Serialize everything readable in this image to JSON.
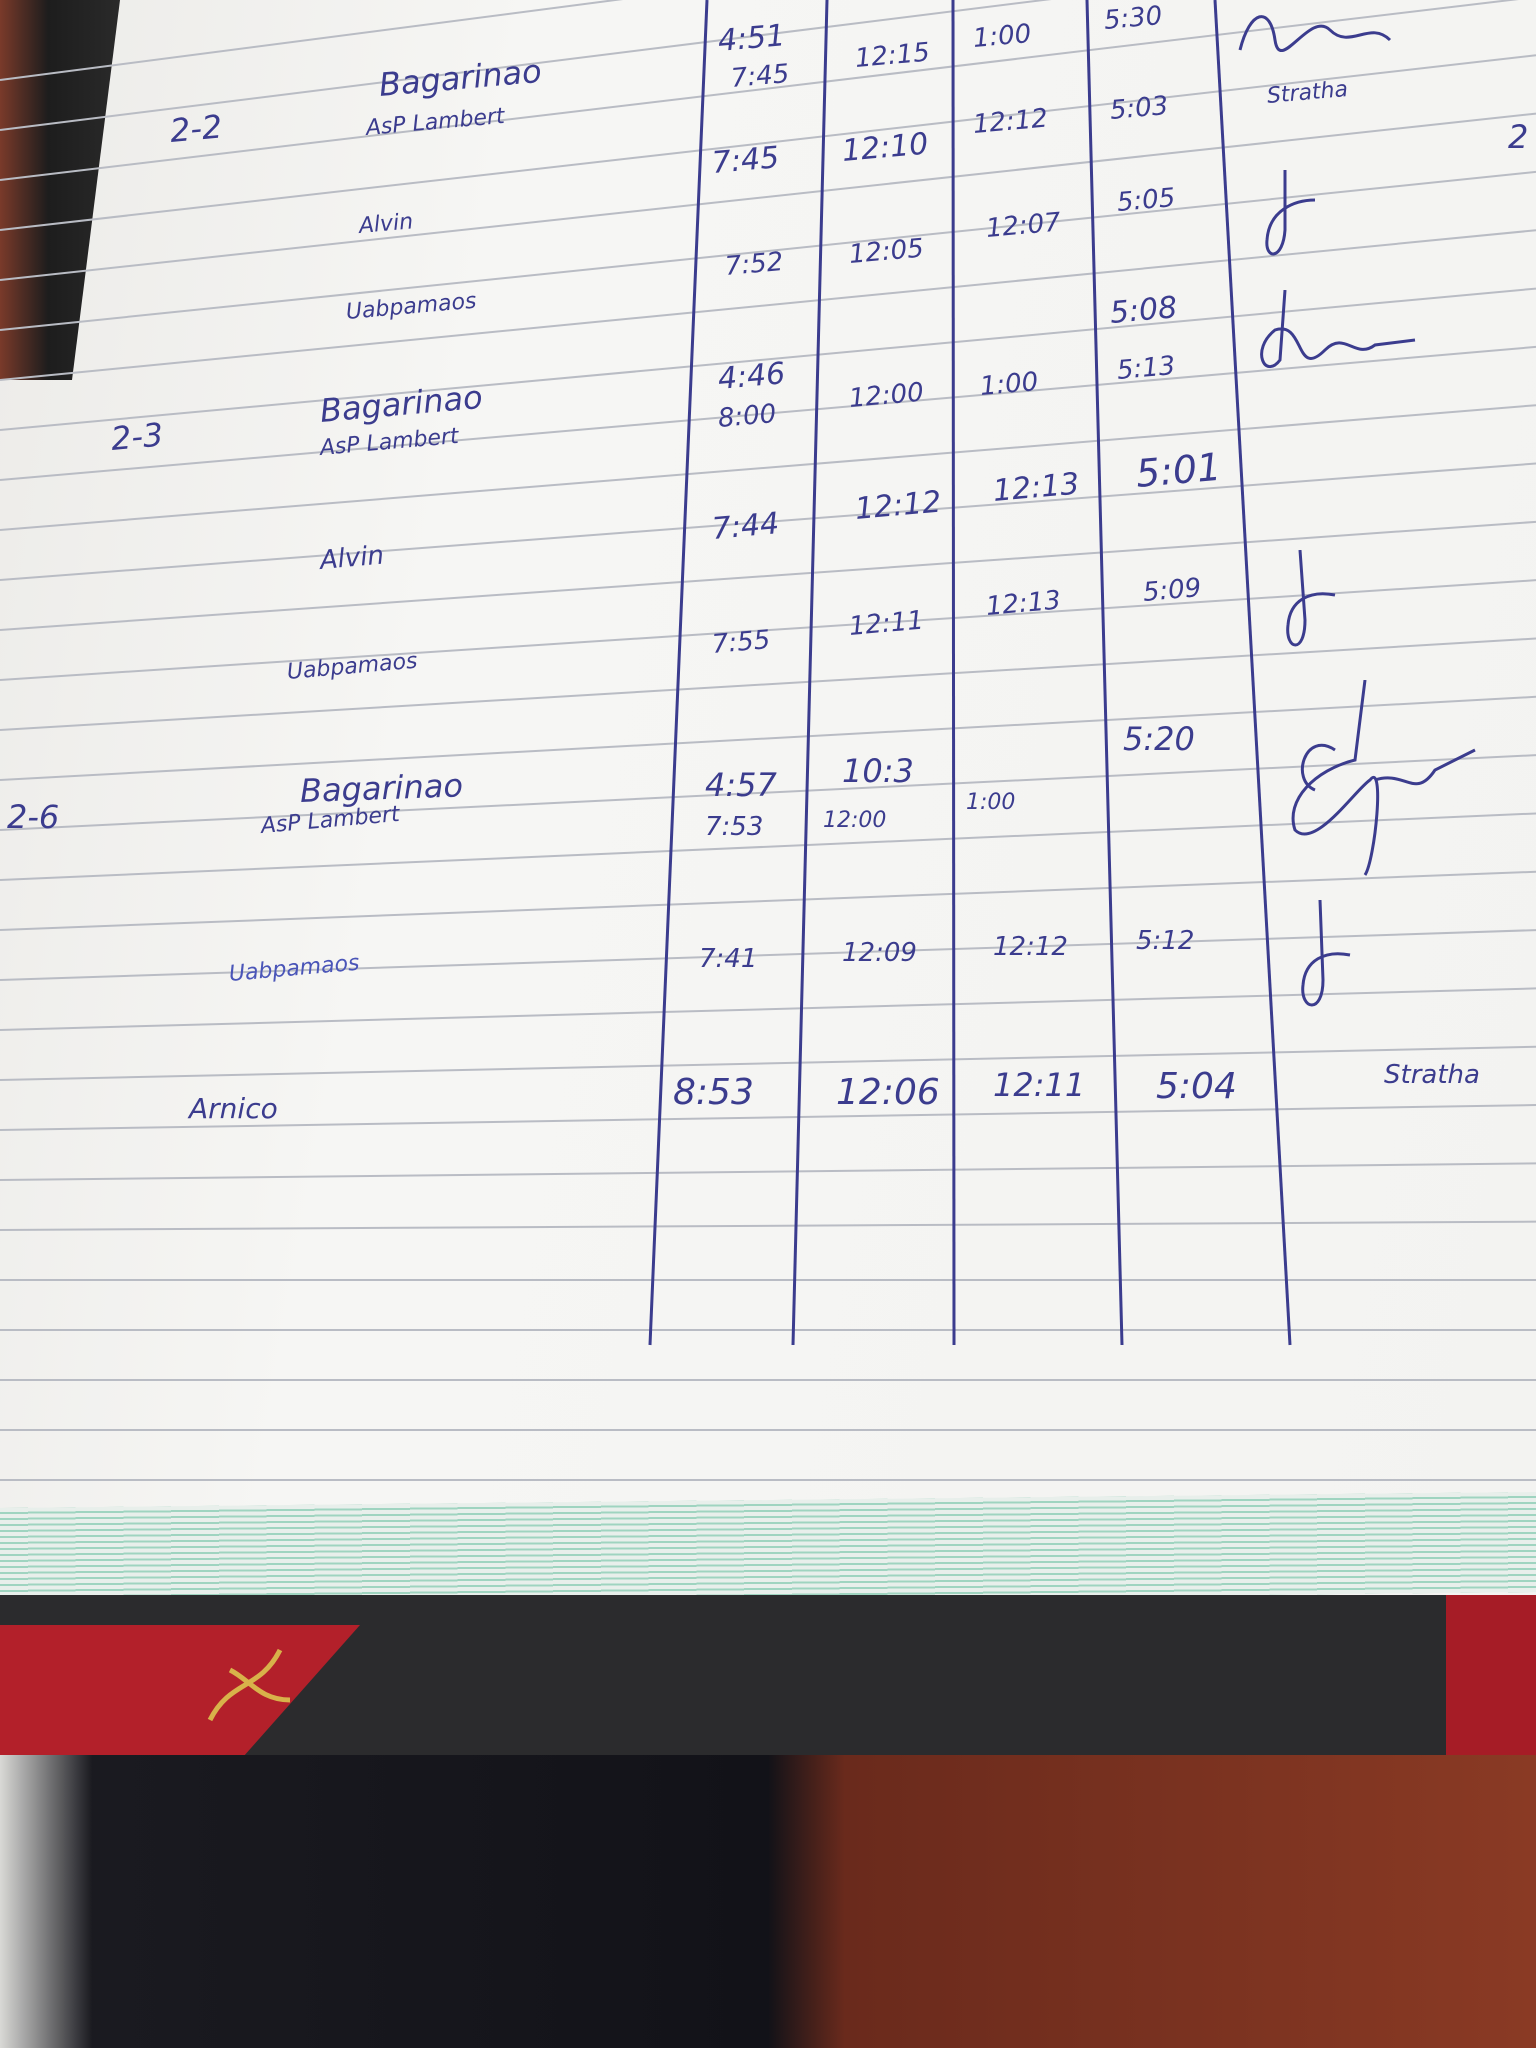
{
  "ledger": {
    "page_marker": "2",
    "groups": [
      {
        "date": "2-2",
        "entries": [
          {
            "name": "Bagarinao",
            "sub": "AsP Lambert",
            "in_am": "7:45",
            "in_am_alt": "4:51",
            "out_am": "12:15",
            "in_pm": "1:00",
            "out_pm": "5:30",
            "signature": "signature-scribble"
          },
          {
            "name": "",
            "in_am": "7:45",
            "out_am": "12:10",
            "in_pm": "12:12",
            "out_pm": "5:03",
            "signature_text": "Stratha"
          },
          {
            "name": "Alvin",
            "in_am": "7:52",
            "out_am": "12:05",
            "in_pm": "12:07",
            "out_pm": "5:05",
            "signature": "signature-initial"
          },
          {
            "name": "Uabpamaos",
            "out_pm": "5:08",
            "out_pm_alt": "5:13",
            "signature": "signature-scribble"
          }
        ]
      },
      {
        "date": "2-3",
        "entries": [
          {
            "name": "Bagarinao",
            "sub": "AsP Lambert",
            "in_am_alt": "4:46",
            "in_am": "8:00",
            "out_am": "12:00",
            "in_pm": "1:00",
            "out_pm": "5:01"
          },
          {
            "name": "Alvin",
            "in_am": "7:44",
            "out_am": "12:12",
            "in_pm": "12:13",
            "out_pm": "5:09",
            "signature": "signature-initial"
          },
          {
            "name": "Uabpamaos",
            "in_am": "7:55",
            "out_am": "12:11",
            "in_pm": "12:13"
          }
        ]
      },
      {
        "date": "2-6",
        "entries": [
          {
            "name": "Bagarinao",
            "sub": "AsP Lambert",
            "in_am_alt": "4:57",
            "in_am": "7:53",
            "out_am_alt": "10:3",
            "out_am": "12:00",
            "in_pm": "1:00",
            "out_pm": "5:20",
            "signature": "signature-scribble"
          },
          {
            "name": "Uabpamaos",
            "in_am": "7:41",
            "out_am": "12:09",
            "in_pm": "12:12",
            "out_pm": "5:12",
            "signature": "signature-initial"
          },
          {
            "name": "Arnico",
            "in_am": "8:53",
            "out_am": "12:06",
            "in_pm": "12:11",
            "out_pm": "5:04",
            "signature_text": "Stratha"
          }
        ]
      }
    ]
  },
  "colors": {
    "ink": "#3b3c8e",
    "rule": "#b9bcc4",
    "page_edge": "#9fd4c0",
    "cover_red": "#b3202a"
  }
}
